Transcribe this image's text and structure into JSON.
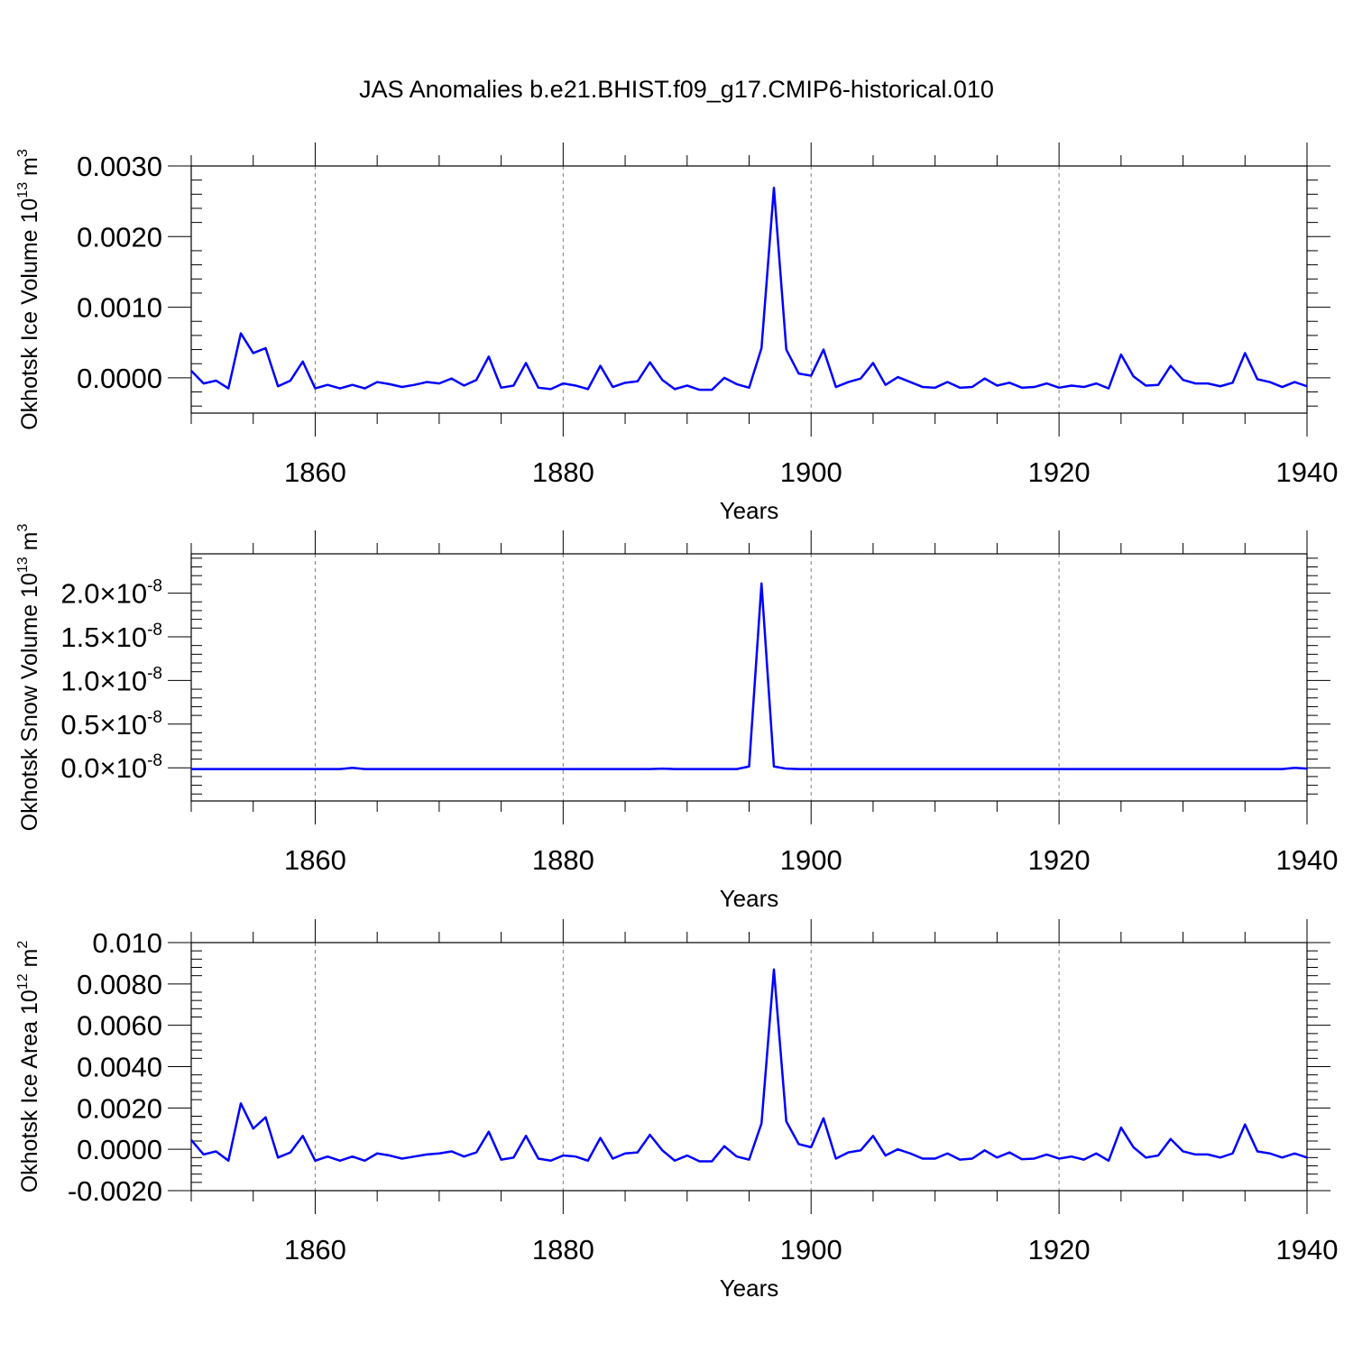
{
  "title": "JAS Anomalies b.e21.BHIST.f09_g17.CMIP6-historical.010",
  "line_color": "#0000ff",
  "chart_data": [
    {
      "type": "line",
      "ylabel": "Okhotsk Ice Volume 10",
      "ylabel_exp": "13",
      "ylabel_unit": " m",
      "ylabel_unit_exp": "3",
      "xlabel": "Years",
      "xlim": [
        1850,
        1940
      ],
      "ylim": [
        -0.0005,
        0.003
      ],
      "x_ticks": [
        1860,
        1880,
        1900,
        1920,
        1940
      ],
      "y_ticks": [
        0.0,
        0.001,
        0.002,
        0.003
      ],
      "y_tick_labels": [
        "0.0000",
        "0.0010",
        "0.0020",
        "0.0030"
      ],
      "grid": "vertical dashed at major x ticks",
      "x": [
        1850,
        1851,
        1852,
        1853,
        1854,
        1855,
        1856,
        1857,
        1858,
        1859,
        1860,
        1861,
        1862,
        1863,
        1864,
        1865,
        1866,
        1867,
        1868,
        1869,
        1870,
        1871,
        1872,
        1873,
        1874,
        1875,
        1876,
        1877,
        1878,
        1879,
        1880,
        1881,
        1882,
        1883,
        1884,
        1885,
        1886,
        1887,
        1888,
        1889,
        1890,
        1891,
        1892,
        1893,
        1894,
        1895,
        1896,
        1897,
        1898,
        1899,
        1900,
        1901,
        1902,
        1903,
        1904,
        1905,
        1906,
        1907,
        1908,
        1909,
        1910,
        1911,
        1912,
        1913,
        1914,
        1915,
        1916,
        1917,
        1918,
        1919,
        1920,
        1921,
        1922,
        1923,
        1924,
        1925,
        1926,
        1927,
        1928,
        1929,
        1930,
        1931,
        1932,
        1933,
        1934,
        1935,
        1936,
        1937,
        1938,
        1939,
        1940
      ],
      "values": [
        0.0001,
        -8e-05,
        -4e-05,
        -0.00015,
        0.00063,
        0.00035,
        0.00042,
        -0.00012,
        -4e-05,
        0.00023,
        -0.00015,
        -0.0001,
        -0.00015,
        -0.0001,
        -0.00015,
        -6e-05,
        -9e-05,
        -0.00013,
        -0.0001,
        -6e-05,
        -8e-05,
        -1e-05,
        -0.00011,
        -3e-05,
        0.0003,
        -0.00014,
        -0.00011,
        0.00021,
        -0.00014,
        -0.00016,
        -8e-05,
        -0.00011,
        -0.00016,
        0.00017,
        -0.00013,
        -7e-05,
        -5e-05,
        0.00022,
        -3e-05,
        -0.00016,
        -0.00011,
        -0.00017,
        -0.00017,
        0.0,
        -9e-05,
        -0.00014,
        0.00042,
        0.00269,
        0.0004,
        6e-05,
        3e-05,
        0.0004,
        -0.00013,
        -6e-05,
        -1e-05,
        0.00021,
        -0.0001,
        1e-05,
        -6e-05,
        -0.00013,
        -0.00014,
        -6e-05,
        -0.00014,
        -0.00013,
        -1e-05,
        -0.00011,
        -7e-05,
        -0.00014,
        -0.00013,
        -8e-05,
        -0.00014,
        -0.00011,
        -0.00013,
        -8e-05,
        -0.00015,
        0.00033,
        2e-05,
        -0.00011,
        -0.0001,
        0.00017,
        -3e-05,
        -8e-05,
        -8e-05,
        -0.00012,
        -7e-05,
        0.00035,
        -2e-05,
        -6e-05,
        -0.00013,
        -6e-05,
        -0.00012
      ]
    },
    {
      "type": "line",
      "ylabel": "Okhotsk Snow Volume 10",
      "ylabel_exp": "13",
      "ylabel_unit": " m",
      "ylabel_unit_exp": "3",
      "xlabel": "Years",
      "xlim": [
        1850,
        1940
      ],
      "ylim": [
        -3.8e-09,
        2.45e-08
      ],
      "x_ticks": [
        1860,
        1880,
        1900,
        1920,
        1940
      ],
      "y_ticks": [
        0.0,
        5e-09,
        1e-08,
        1.5e-08,
        2e-08
      ],
      "y_tick_labels": [
        {
          "mant": "0.0",
          "exp": "-8"
        },
        {
          "mant": "0.5",
          "exp": "-8"
        },
        {
          "mant": "1.0",
          "exp": "-8"
        },
        {
          "mant": "1.5",
          "exp": "-8"
        },
        {
          "mant": "2.0",
          "exp": "-8"
        }
      ],
      "grid": "vertical dashed at major x ticks",
      "x": [
        1850,
        1851,
        1852,
        1853,
        1854,
        1855,
        1856,
        1857,
        1858,
        1859,
        1860,
        1861,
        1862,
        1863,
        1864,
        1865,
        1866,
        1867,
        1868,
        1869,
        1870,
        1871,
        1872,
        1873,
        1874,
        1875,
        1876,
        1877,
        1878,
        1879,
        1880,
        1881,
        1882,
        1883,
        1884,
        1885,
        1886,
        1887,
        1888,
        1889,
        1890,
        1891,
        1892,
        1893,
        1894,
        1895,
        1896,
        1897,
        1898,
        1899,
        1900,
        1901,
        1902,
        1903,
        1904,
        1905,
        1906,
        1907,
        1908,
        1909,
        1910,
        1911,
        1912,
        1913,
        1914,
        1915,
        1916,
        1917,
        1918,
        1919,
        1920,
        1921,
        1922,
        1923,
        1924,
        1925,
        1926,
        1927,
        1928,
        1929,
        1930,
        1931,
        1932,
        1933,
        1934,
        1935,
        1936,
        1937,
        1938,
        1939,
        1940
      ],
      "values": [
        -1.5e-10,
        -1.5e-10,
        -1.5e-10,
        -1.5e-10,
        -1.5e-10,
        -1.5e-10,
        -1.5e-10,
        -1.5e-10,
        -1.5e-10,
        -1.5e-10,
        -1.5e-10,
        -1.5e-10,
        -1.5e-10,
        0.0,
        -1.5e-10,
        -1.5e-10,
        -1.5e-10,
        -1.5e-10,
        -1.5e-10,
        -1.5e-10,
        -1.5e-10,
        -1.5e-10,
        -1.5e-10,
        -1.5e-10,
        -1.5e-10,
        -1.5e-10,
        -1.5e-10,
        -1.5e-10,
        -1.5e-10,
        -1.5e-10,
        -1.5e-10,
        -1.5e-10,
        -1.5e-10,
        -1.5e-10,
        -1.5e-10,
        -1.5e-10,
        -1.5e-10,
        -1.5e-10,
        -1e-10,
        -1.5e-10,
        -1.5e-10,
        -1.5e-10,
        -1.5e-10,
        -1.5e-10,
        -1.5e-10,
        1.5e-10,
        2.11e-08,
        1.5e-10,
        -1e-10,
        -1.5e-10,
        -1.5e-10,
        -1.5e-10,
        -1.5e-10,
        -1.5e-10,
        -1.5e-10,
        -1.5e-10,
        -1.5e-10,
        -1.5e-10,
        -1.5e-10,
        -1.5e-10,
        -1.5e-10,
        -1.5e-10,
        -1.5e-10,
        -1.5e-10,
        -1.5e-10,
        -1.5e-10,
        -1.5e-10,
        -1.5e-10,
        -1.5e-10,
        -1.5e-10,
        -1.5e-10,
        -1.5e-10,
        -1.5e-10,
        -1.5e-10,
        -1.5e-10,
        -1.5e-10,
        -1.5e-10,
        -1.5e-10,
        -1.5e-10,
        -1.5e-10,
        -1.5e-10,
        -1.5e-10,
        -1.5e-10,
        -1.5e-10,
        -1.5e-10,
        -1.5e-10,
        -1.5e-10,
        -1.5e-10,
        -1.5e-10,
        0.0,
        -1e-10
      ]
    },
    {
      "type": "line",
      "ylabel": "Okhotsk Ice Area 10",
      "ylabel_exp": "12",
      "ylabel_unit": " m",
      "ylabel_unit_exp": "2",
      "xlabel": "Years",
      "xlim": [
        1850,
        1940
      ],
      "ylim": [
        -0.002,
        0.01
      ],
      "x_ticks": [
        1860,
        1880,
        1900,
        1920,
        1940
      ],
      "y_ticks": [
        -0.002,
        0.0,
        0.002,
        0.004,
        0.006,
        0.008,
        0.01
      ],
      "y_tick_labels": [
        "-0.0020",
        "0.0000",
        "0.0020",
        "0.0040",
        "0.0060",
        "0.0080",
        "0.010"
      ],
      "grid": "vertical dashed at major x ticks",
      "x": [
        1850,
        1851,
        1852,
        1853,
        1854,
        1855,
        1856,
        1857,
        1858,
        1859,
        1860,
        1861,
        1862,
        1863,
        1864,
        1865,
        1866,
        1867,
        1868,
        1869,
        1870,
        1871,
        1872,
        1873,
        1874,
        1875,
        1876,
        1877,
        1878,
        1879,
        1880,
        1881,
        1882,
        1883,
        1884,
        1885,
        1886,
        1887,
        1888,
        1889,
        1890,
        1891,
        1892,
        1893,
        1894,
        1895,
        1896,
        1897,
        1898,
        1899,
        1900,
        1901,
        1902,
        1903,
        1904,
        1905,
        1906,
        1907,
        1908,
        1909,
        1910,
        1911,
        1912,
        1913,
        1914,
        1915,
        1916,
        1917,
        1918,
        1919,
        1920,
        1921,
        1922,
        1923,
        1924,
        1925,
        1926,
        1927,
        1928,
        1929,
        1930,
        1931,
        1932,
        1933,
        1934,
        1935,
        1936,
        1937,
        1938,
        1939,
        1940
      ],
      "values": [
        0.00045,
        -0.00025,
        -0.0001,
        -0.00055,
        0.00222,
        0.001,
        0.00155,
        -0.0004,
        -0.00015,
        0.00065,
        -0.00055,
        -0.00035,
        -0.00055,
        -0.00035,
        -0.00055,
        -0.0002,
        -0.0003,
        -0.00045,
        -0.00035,
        -0.00025,
        -0.0002,
        -0.0001,
        -0.00035,
        -0.00015,
        0.00085,
        -0.0005,
        -0.0004,
        0.00065,
        -0.00045,
        -0.00055,
        -0.0003,
        -0.00035,
        -0.00055,
        0.00055,
        -0.00045,
        -0.0002,
        -0.00015,
        0.0007,
        -5e-05,
        -0.00055,
        -0.0003,
        -0.00058,
        -0.00058,
        0.00015,
        -0.00035,
        -0.0005,
        0.00125,
        0.0087,
        0.00135,
        0.00025,
        0.0001,
        0.0015,
        -0.00045,
        -0.00015,
        -5e-05,
        0.00065,
        -0.0003,
        0.0,
        -0.0002,
        -0.00045,
        -0.00045,
        -0.0002,
        -0.0005,
        -0.00045,
        -5e-05,
        -0.0004,
        -0.00015,
        -0.00048,
        -0.00045,
        -0.00025,
        -0.00045,
        -0.00035,
        -0.0005,
        -0.0002,
        -0.00055,
        0.00105,
        0.0001,
        -0.0004,
        -0.0003,
        0.0005,
        -0.0001,
        -0.00025,
        -0.00025,
        -0.0004,
        -0.0002,
        0.0012,
        -0.0001,
        -0.0002,
        -0.0004,
        -0.0002,
        -0.0004
      ]
    }
  ]
}
